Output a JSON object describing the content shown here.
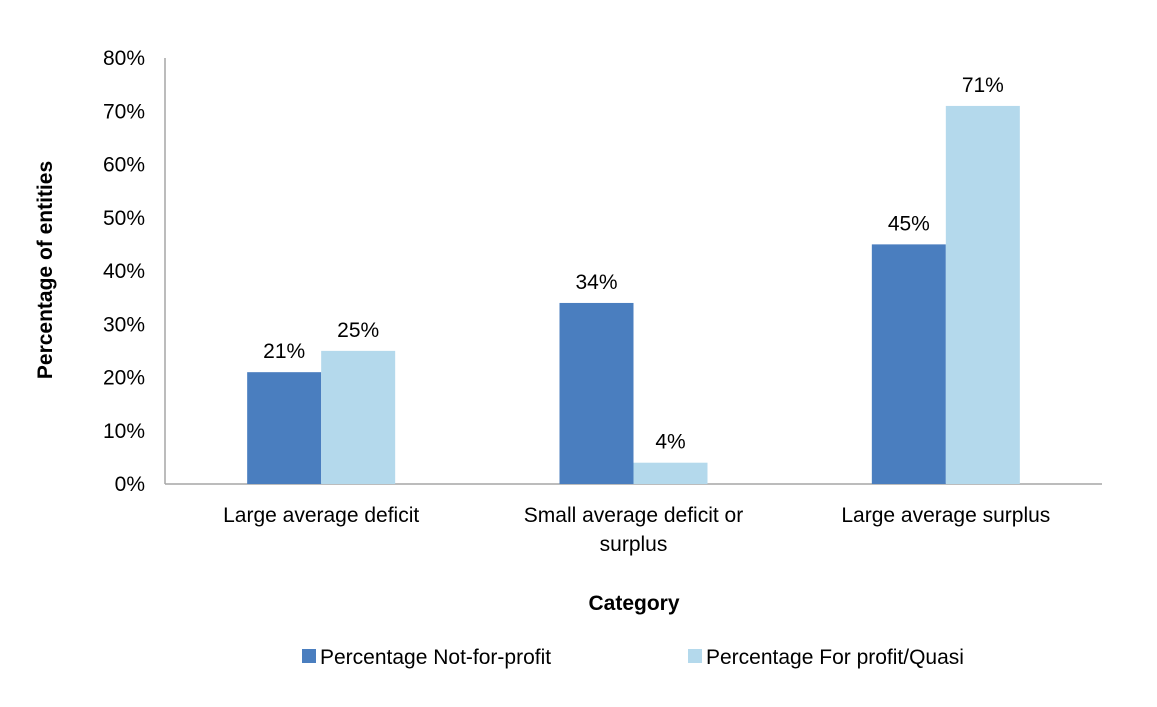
{
  "chart_data": {
    "type": "bar",
    "categories": [
      [
        "Large average deficit"
      ],
      [
        "Small average deficit or",
        "surplus"
      ],
      [
        "Large average surplus"
      ]
    ],
    "series": [
      {
        "name": "Percentage Not-for-profit",
        "values": [
          21,
          34,
          45
        ],
        "color": "#4a7ebf"
      },
      {
        "name": "Percentage For profit/Quasi",
        "values": [
          25,
          4,
          71
        ],
        "color": "#b4d9ec"
      }
    ],
    "data_labels": [
      [
        "21%",
        "34%",
        "45%"
      ],
      [
        "25%",
        "4%",
        "71%"
      ]
    ],
    "y_ticks": [
      "0%",
      "10%",
      "20%",
      "30%",
      "40%",
      "50%",
      "60%",
      "70%",
      "80%"
    ],
    "ylim": [
      0,
      80
    ],
    "xlabel": "Category",
    "ylabel": "Percentage of entities",
    "grid": false,
    "legend_position": "bottom"
  }
}
